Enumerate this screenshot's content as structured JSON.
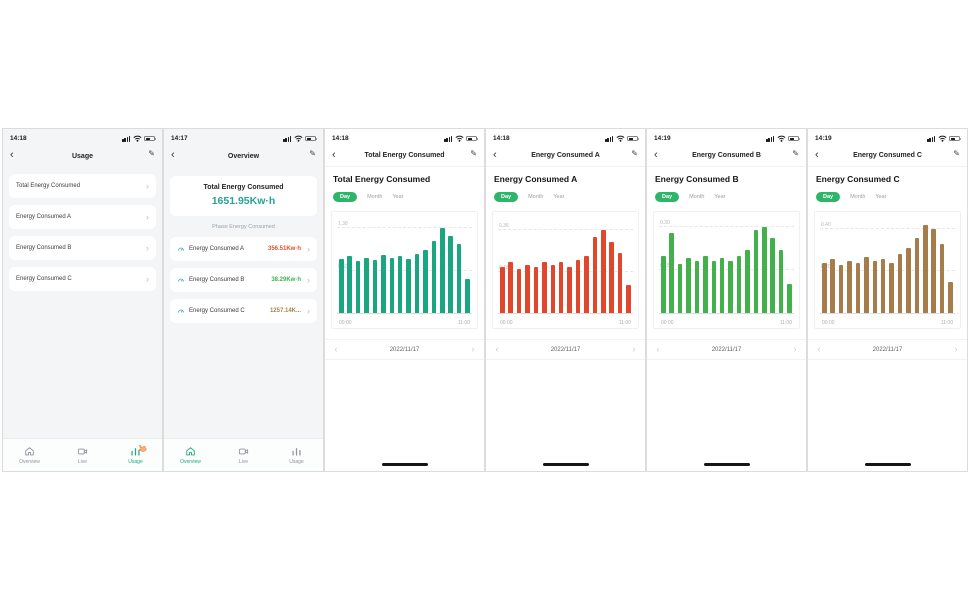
{
  "theme": {
    "green": "#1ea97c",
    "pill_green": "#2fb56b",
    "hand_color": "#f3b27f"
  },
  "icons": {
    "back": "‹",
    "chevron_right": "›",
    "edit": "✎",
    "prev": "‹",
    "next": "›"
  },
  "screens": [
    {
      "type": "menu",
      "status_time": "14:18",
      "title": "Usage",
      "items": [
        "Total Energy Consumed",
        "Energy Consumed A",
        "Energy Consumed B",
        "Energy Consumed C"
      ],
      "tabs": [
        {
          "label": "Overview",
          "active": false
        },
        {
          "label": "Live",
          "active": false
        },
        {
          "label": "Usage",
          "active": true
        }
      ]
    },
    {
      "type": "overview",
      "status_time": "14:17",
      "title": "Overview",
      "total": {
        "label": "Total Energy Consumed",
        "value": "1651.95Kw·h",
        "color": "#26a296"
      },
      "section_label": "Phase Energy Consumed",
      "phases": [
        {
          "label": "Energy Consumed A",
          "value": "356.51Kw·h",
          "color": "#e2502f"
        },
        {
          "label": "Energy Consumed B",
          "value": "38.29Kw·h",
          "color": "#3cb34f"
        },
        {
          "label": "Energy Consumed C",
          "value": "1257.14K...",
          "color": "#a9824e"
        }
      ],
      "tabs": [
        {
          "label": "Overview",
          "active": true
        },
        {
          "label": "Live",
          "active": false
        },
        {
          "label": "Usage",
          "active": false
        }
      ]
    },
    {
      "type": "chart",
      "status_time": "14:18",
      "title": "Total Energy Consumed",
      "heading": "Total Energy Consumed",
      "segments": [
        "Day",
        "Month",
        "Year"
      ],
      "selected_segment": "Day",
      "date": "2022/11/17",
      "chart": {
        "type": "bar",
        "color": "#1aa583",
        "unit": "Kw·h",
        "ymax": 1.5,
        "y_ticks": [
          {
            "label": "1.38",
            "value": 1.38
          },
          {
            "label": "0.69",
            "value": 0.69
          }
        ],
        "x_ticks": [
          "00:00",
          "11:00"
        ],
        "values": [
          0.88,
          0.93,
          0.85,
          0.9,
          0.86,
          0.95,
          0.9,
          0.93,
          0.88,
          0.96,
          1.02,
          1.18,
          1.38,
          1.25,
          1.12,
          0.55
        ]
      }
    },
    {
      "type": "chart",
      "status_time": "14:18",
      "title": "Energy Consumed A",
      "heading": "Energy Consumed A",
      "segments": [
        "Day",
        "Month",
        "Year"
      ],
      "selected_segment": "Day",
      "date": "2022/11/17",
      "chart": {
        "type": "bar",
        "color": "#e1472c",
        "unit": "Kw·h",
        "ymax": 0.4,
        "y_ticks": [
          {
            "label": "0.36",
            "value": 0.36
          },
          {
            "label": "0.18",
            "value": 0.18
          }
        ],
        "x_ticks": [
          "00:00",
          "11:00"
        ],
        "values": [
          0.2,
          0.22,
          0.19,
          0.21,
          0.2,
          0.22,
          0.21,
          0.22,
          0.2,
          0.23,
          0.25,
          0.33,
          0.36,
          0.31,
          0.26,
          0.12
        ]
      }
    },
    {
      "type": "chart",
      "status_time": "14:19",
      "title": "Energy Consumed B",
      "heading": "Energy Consumed B",
      "segments": [
        "Day",
        "Month",
        "Year"
      ],
      "selected_segment": "Day",
      "date": "2022/11/17",
      "chart": {
        "type": "bar",
        "color": "#43b14b",
        "unit": "Kw·h",
        "ymax": 0.32,
        "y_ticks": [
          {
            "label": "0.30",
            "value": 0.3
          },
          {
            "label": "0.15",
            "value": 0.15
          }
        ],
        "x_ticks": [
          "00:00",
          "11:00"
        ],
        "values": [
          0.2,
          0.28,
          0.17,
          0.19,
          0.18,
          0.2,
          0.18,
          0.19,
          0.18,
          0.2,
          0.22,
          0.29,
          0.3,
          0.26,
          0.22,
          0.1
        ]
      }
    },
    {
      "type": "chart",
      "status_time": "14:19",
      "title": "Energy Consumed C",
      "heading": "Energy Consumed C",
      "segments": [
        "Day",
        "Month",
        "Year"
      ],
      "selected_segment": "Day",
      "date": "2022/11/17",
      "chart": {
        "type": "bar",
        "color": "#a67c4a",
        "unit": "Kw·h",
        "ymax": 0.44,
        "y_ticks": [
          {
            "label": "0.40",
            "value": 0.4
          },
          {
            "label": "0.20",
            "value": 0.2
          }
        ],
        "x_ticks": [
          "00:00",
          "11:00"
        ],
        "values": [
          0.24,
          0.26,
          0.23,
          0.25,
          0.24,
          0.27,
          0.25,
          0.26,
          0.24,
          0.28,
          0.31,
          0.36,
          0.42,
          0.4,
          0.33,
          0.15
        ]
      }
    }
  ]
}
